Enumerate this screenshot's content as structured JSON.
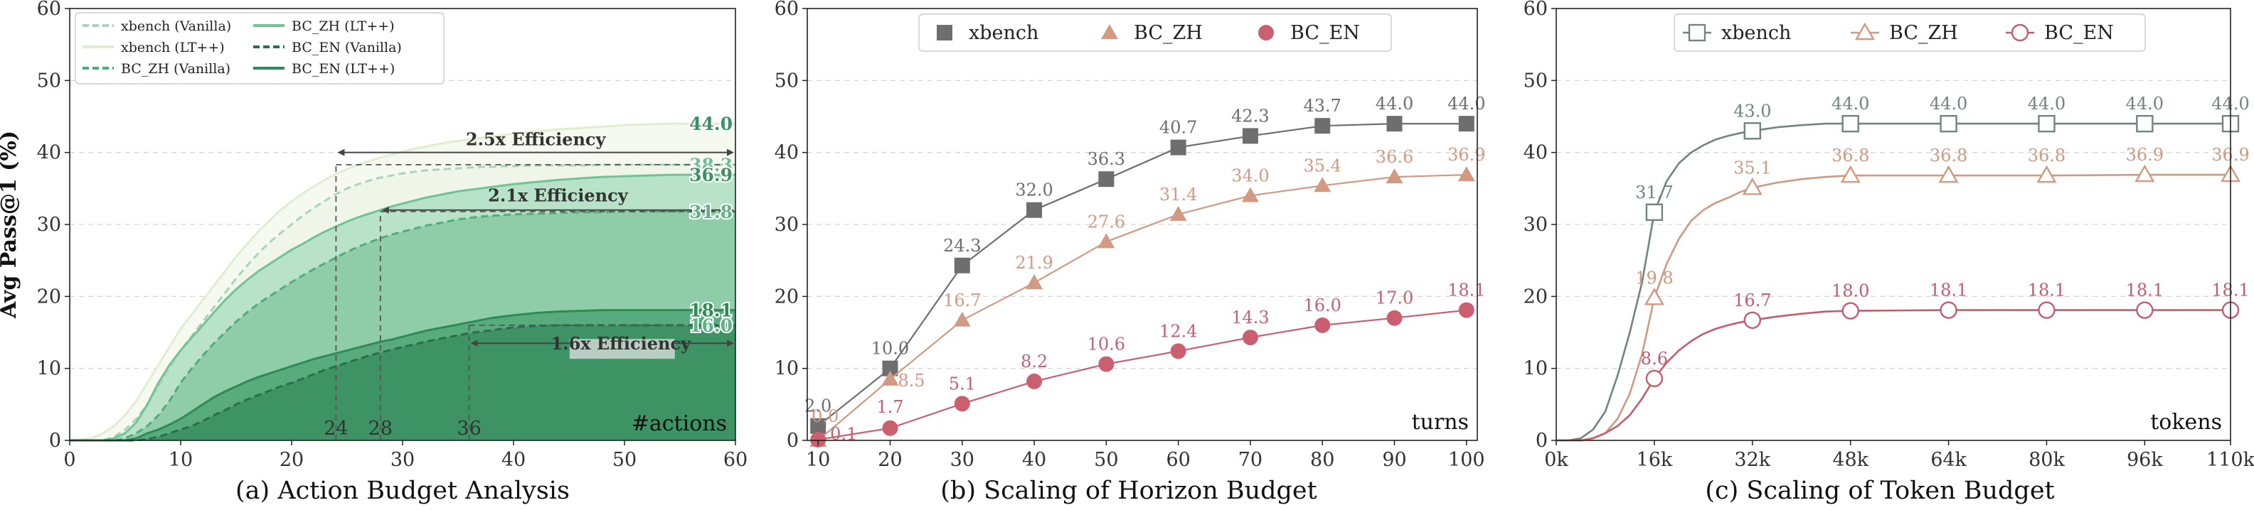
{
  "chart_data": [
    {
      "type": "area",
      "caption": "(a) Action Budget Analysis",
      "ylabel": "Avg Pass@1 (%)",
      "corner_label": "#actions",
      "xlim": [
        0,
        60
      ],
      "ylim": [
        0,
        60
      ],
      "xticks": [
        0,
        10,
        20,
        30,
        40,
        50,
        60
      ],
      "yticks": [
        0,
        10,
        20,
        30,
        40,
        50,
        60
      ],
      "grid": "horizontal-dashed",
      "legend_position": "top-left",
      "x": [
        0,
        2,
        3,
        4,
        5,
        6,
        7,
        8,
        9,
        10,
        11,
        12,
        13,
        14,
        15,
        16,
        17,
        18,
        19,
        20,
        21,
        22,
        23,
        24,
        25,
        26,
        27,
        28,
        29,
        30,
        31,
        32,
        33,
        34,
        35,
        36,
        37,
        38,
        39,
        40,
        42,
        44,
        46,
        48,
        50,
        52,
        54,
        56,
        58,
        60
      ],
      "series": [
        {
          "name": "xbench (Vanilla)",
          "style": "dashed",
          "fill": "#eef5e8",
          "line": "#a8d4bb",
          "values": [
            0,
            0,
            0,
            0.5,
            1.5,
            3,
            5,
            7.5,
            10,
            12.5,
            14.5,
            16.5,
            18.5,
            20.5,
            22.5,
            24.3,
            26,
            27.5,
            28.8,
            30,
            31.2,
            32.3,
            33.3,
            34.2,
            35,
            35.6,
            36.1,
            36.5,
            36.8,
            37.1,
            37.3,
            37.5,
            37.6,
            37.7,
            37.8,
            37.9,
            38,
            38,
            38.1,
            38.1,
            38.2,
            38.2,
            38.2,
            38.3,
            38.3,
            38.3,
            38.3,
            38.3,
            38.3,
            38.3
          ]
        },
        {
          "name": "xbench (LT++)",
          "style": "solid",
          "fill": "#f5f9ef",
          "line": "#dfeecf",
          "values": [
            0,
            0.3,
            1,
            2,
            3.5,
            5.5,
            8,
            10.5,
            13,
            15.5,
            17.5,
            19.5,
            21.5,
            23.5,
            25.5,
            27.3,
            29,
            30.5,
            32,
            33.2,
            34.3,
            35.3,
            36.2,
            37,
            37.7,
            38.3,
            38.8,
            39.3,
            39.7,
            40.1,
            40.5,
            40.8,
            41.1,
            41.4,
            41.6,
            41.8,
            42,
            42.2,
            42.4,
            42.6,
            42.9,
            43.2,
            43.4,
            43.6,
            43.8,
            43.9,
            44,
            44,
            44,
            44
          ]
        },
        {
          "name": "BC_ZH (Vanilla)",
          "style": "dashed",
          "fill": "#8ccba6",
          "line": "#4fac7c",
          "values": [
            0,
            0,
            0,
            0,
            0.3,
            1,
            2,
            3.5,
            5.5,
            8,
            10,
            11.8,
            13.5,
            15,
            16.5,
            17.8,
            19,
            20,
            21,
            22,
            22.9,
            23.8,
            24.6,
            25.4,
            26.2,
            26.9,
            27.5,
            28.1,
            28.6,
            29,
            29.4,
            29.8,
            30.1,
            30.4,
            30.7,
            30.9,
            31.1,
            31.2,
            31.3,
            31.4,
            31.5,
            31.6,
            31.7,
            31.7,
            31.8,
            31.8,
            31.8,
            31.8,
            31.8,
            31.8
          ]
        },
        {
          "name": "BC_ZH (LT++)",
          "style": "solid",
          "fill": "#b5e1c6",
          "line": "#72c394",
          "values": [
            0,
            0,
            0,
            0.3,
            1,
            2.5,
            5,
            8,
            10.5,
            12.5,
            14.3,
            16,
            17.8,
            19.5,
            21,
            22.3,
            23.5,
            24.5,
            25.5,
            26.5,
            27.3,
            28.2,
            29,
            29.7,
            30.4,
            31,
            31.5,
            32,
            32.5,
            32.9,
            33.3,
            33.7,
            34,
            34.3,
            34.6,
            34.8,
            35,
            35.2,
            35.4,
            35.6,
            35.9,
            36.2,
            36.4,
            36.6,
            36.7,
            36.8,
            36.9,
            36.9,
            36.9,
            36.9
          ]
        },
        {
          "name": "BC_EN (Vanilla)",
          "style": "dashed",
          "fill": "#3c9162",
          "line": "#2a6e4a",
          "values": [
            0,
            0,
            0,
            0,
            0,
            0,
            0.2,
            0.5,
            1,
            1.5,
            2,
            2.7,
            3.5,
            4.2,
            5,
            5.7,
            6.3,
            6.9,
            7.5,
            8,
            8.6,
            9.2,
            9.8,
            10.3,
            10.8,
            11.3,
            11.8,
            12.2,
            12.6,
            13,
            13.3,
            13.7,
            14,
            14.3,
            14.6,
            14.9,
            15.1,
            15.3,
            15.5,
            15.7,
            15.9,
            16,
            16,
            16,
            16,
            16,
            16,
            16,
            16,
            16
          ]
        },
        {
          "name": "BC_EN (LT++)",
          "style": "solid",
          "fill": "#55a97a",
          "line": "#2f8a56",
          "values": [
            0,
            0,
            0,
            0,
            0,
            0.3,
            1,
            1.5,
            2.2,
            3,
            4,
            5,
            6,
            6.8,
            7.5,
            8.2,
            8.8,
            9.3,
            9.8,
            10.3,
            10.8,
            11.3,
            11.7,
            12.1,
            12.5,
            12.9,
            13.3,
            13.7,
            14,
            14.4,
            14.8,
            15.2,
            15.5,
            15.8,
            16.1,
            16.4,
            16.7,
            17,
            17.2,
            17.4,
            17.7,
            17.9,
            18,
            18.1,
            18.1,
            18.1,
            18.1,
            18.1,
            18.1,
            18.1
          ]
        }
      ],
      "end_labels": [
        {
          "text": "44.0",
          "y": 44.0,
          "color": "#3c9162"
        },
        {
          "text": "38.3",
          "y": 38.3,
          "color": "#6fbf90"
        },
        {
          "text": "36.9",
          "y": 36.9,
          "color": "#3c9162"
        },
        {
          "text": "31.8",
          "y": 31.8,
          "color": "#5fb486"
        },
        {
          "text": "18.1",
          "y": 18.1,
          "color": "#2f8a56"
        },
        {
          "text": "16.0",
          "y": 16.0,
          "color": "#5fb486"
        }
      ],
      "annotations": [
        {
          "text": "2.5x Efficiency",
          "x_from": 24,
          "x_to": 60,
          "y": 40,
          "guide_y": 38.3
        },
        {
          "text": "2.1x Efficiency",
          "x_from": 28,
          "x_to": 60,
          "y": 32,
          "guide_y": 31.8
        },
        {
          "text": "1.6x Efficiency",
          "x_from": 36,
          "x_to": 60,
          "y": 13.5,
          "guide_y": 16.0
        }
      ],
      "marker_ticks": [
        {
          "text": "24",
          "x": 24
        },
        {
          "text": "28",
          "x": 28
        },
        {
          "text": "36",
          "x": 36
        }
      ]
    },
    {
      "type": "line",
      "caption": "(b) Scaling of Horizon Budget",
      "corner_label": "turns",
      "xlim": [
        8.5,
        101.5
      ],
      "ylim": [
        0,
        60
      ],
      "xticks": [
        10,
        20,
        30,
        40,
        50,
        60,
        70,
        80,
        90,
        100
      ],
      "yticks": [
        0,
        10,
        20,
        30,
        40,
        50,
        60
      ],
      "grid": "horizontal-dashed",
      "legend_position": "top-center",
      "x": [
        10,
        20,
        30,
        40,
        50,
        60,
        70,
        80,
        90,
        100
      ],
      "series": [
        {
          "name": "xbench",
          "color": "#6e6e6e",
          "marker": "square",
          "values": [
            2.0,
            10.0,
            24.3,
            32.0,
            36.3,
            40.7,
            42.3,
            43.7,
            44.0,
            44.0
          ],
          "labels": [
            "2.0",
            "10.0",
            "24.3",
            "32.0",
            "36.3",
            "40.7",
            "42.3",
            "43.7",
            "44.0",
            "44.0"
          ]
        },
        {
          "name": "BC_ZH",
          "color": "#d29a83",
          "marker": "triangle",
          "values": [
            0.0,
            8.5,
            16.7,
            21.9,
            27.6,
            31.4,
            34.0,
            35.4,
            36.6,
            36.9
          ],
          "labels": [
            "0.0",
            "8.5",
            "16.7",
            "21.9",
            "27.6",
            "31.4",
            "34.0",
            "35.4",
            "36.6",
            "36.9"
          ]
        },
        {
          "name": "BC_EN",
          "color": "#c95f6f",
          "marker": "circle",
          "values": [
            0.1,
            1.7,
            5.1,
            8.2,
            10.6,
            12.4,
            14.3,
            16.0,
            17.0,
            18.1
          ],
          "labels": [
            "0.1",
            "1.7",
            "5.1",
            "8.2",
            "10.6",
            "12.4",
            "14.3",
            "16.0",
            "17.0",
            "18.1"
          ]
        }
      ]
    },
    {
      "type": "line",
      "caption": "(c) Scaling of Token Budget",
      "corner_label": "tokens",
      "xlim": [
        0,
        110
      ],
      "ylim": [
        0,
        60
      ],
      "xticks": [
        0,
        16,
        32,
        48,
        64,
        80,
        96,
        110
      ],
      "xtick_labels": [
        "0k",
        "16k",
        "32k",
        "48k",
        "64k",
        "80k",
        "96k",
        "110k"
      ],
      "yticks": [
        0,
        10,
        20,
        30,
        40,
        50,
        60
      ],
      "grid": "horizontal-dashed",
      "legend_position": "top-center",
      "series": [
        {
          "name": "xbench",
          "color": "#6f8580",
          "marker": "square-open",
          "x": [
            0,
            2,
            4,
            6,
            8,
            10,
            12,
            14,
            16,
            18,
            20,
            22,
            24,
            26,
            28,
            30,
            32,
            36,
            40,
            44,
            48,
            64,
            80,
            96,
            110
          ],
          "values": [
            0,
            0,
            0.3,
            1.5,
            4,
            9,
            15,
            22,
            31.7,
            36,
            38.5,
            40,
            41,
            41.8,
            42.3,
            42.7,
            43.0,
            43.5,
            43.8,
            44,
            44,
            44,
            44,
            44,
            44
          ],
          "marker_x": [
            16,
            32,
            48,
            64,
            80,
            96,
            110
          ],
          "marker_values": [
            31.7,
            43.0,
            44.0,
            44.0,
            44.0,
            44.0,
            44.0
          ],
          "labels": [
            "31.7",
            "43.0",
            "44.0",
            "44.0",
            "44.0",
            "44.0",
            "44.0"
          ]
        },
        {
          "name": "BC_ZH",
          "color": "#cf9a80",
          "marker": "triangle-open",
          "x": [
            0,
            4,
            6,
            8,
            10,
            12,
            14,
            16,
            18,
            20,
            22,
            24,
            26,
            28,
            30,
            32,
            36,
            40,
            44,
            48,
            64,
            80,
            96,
            110
          ],
          "values": [
            0,
            0,
            0.3,
            1,
            3,
            6.5,
            12,
            19.8,
            24.5,
            28,
            30.5,
            32,
            33,
            33.7,
            34.5,
            35.1,
            35.8,
            36.3,
            36.6,
            36.8,
            36.8,
            36.8,
            36.9,
            36.9
          ],
          "marker_x": [
            16,
            32,
            48,
            64,
            80,
            96,
            110
          ],
          "marker_values": [
            19.8,
            35.1,
            36.8,
            36.8,
            36.8,
            36.9,
            36.9
          ],
          "labels": [
            "19.8",
            "35.1",
            "36.8",
            "36.8",
            "36.8",
            "36.9",
            "36.9"
          ]
        },
        {
          "name": "BC_EN",
          "color": "#c45c6c",
          "marker": "circle-open",
          "x": [
            0,
            4,
            6,
            8,
            10,
            12,
            14,
            16,
            18,
            20,
            22,
            24,
            26,
            28,
            30,
            32,
            36,
            40,
            44,
            48,
            64,
            80,
            96,
            110
          ],
          "values": [
            0,
            0,
            0.3,
            1,
            2,
            3.5,
            5.8,
            8.6,
            10.8,
            12.5,
            13.8,
            14.8,
            15.5,
            16,
            16.4,
            16.7,
            17.2,
            17.6,
            17.9,
            18.0,
            18.1,
            18.1,
            18.1,
            18.1
          ],
          "marker_x": [
            16,
            32,
            48,
            64,
            80,
            96,
            110
          ],
          "marker_values": [
            8.6,
            16.7,
            18.0,
            18.1,
            18.1,
            18.1,
            18.1
          ],
          "labels": [
            "8.6",
            "16.7",
            "18.0",
            "18.1",
            "18.1",
            "18.1",
            "18.1"
          ]
        }
      ]
    }
  ]
}
